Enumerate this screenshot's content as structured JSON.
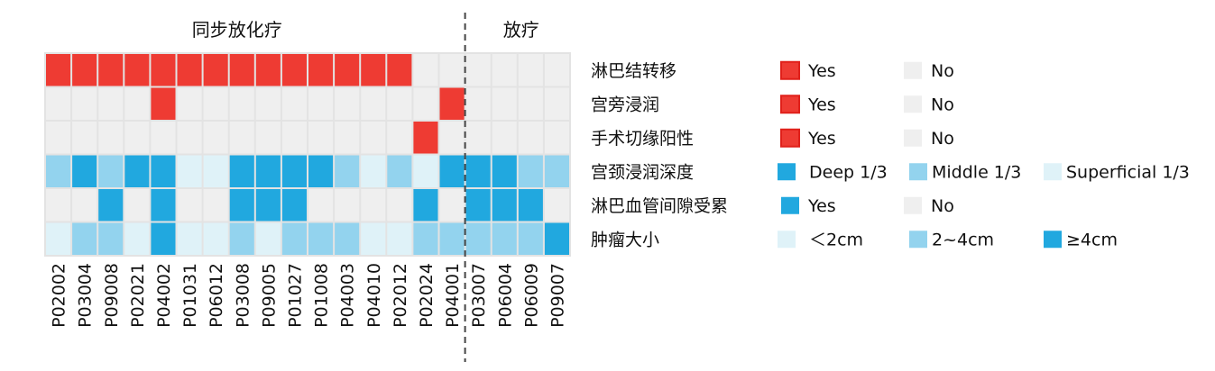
{
  "chart_data": {
    "type": "heatmap",
    "groups": [
      {
        "label": "同步放化疗",
        "columns": 16
      },
      {
        "label": "放疗",
        "columns": 4
      }
    ],
    "columns": [
      "P02002",
      "P03004",
      "P09008",
      "P02021",
      "P04002",
      "P01031",
      "P06012",
      "P03008",
      "P09005",
      "P01027",
      "P01008",
      "P04003",
      "P04010",
      "P02012",
      "P02024",
      "P04001",
      "P03007",
      "P06004",
      "P06009",
      "P09007"
    ],
    "rows": [
      {
        "label": "淋巴结转移",
        "values": [
          "Yes",
          "Yes",
          "Yes",
          "Yes",
          "Yes",
          "Yes",
          "Yes",
          "Yes",
          "Yes",
          "Yes",
          "Yes",
          "Yes",
          "Yes",
          "Yes",
          "No",
          "No",
          "No",
          "No",
          "No",
          "No"
        ],
        "legend": [
          {
            "value": "Yes",
            "label": "Yes",
            "color": "#ee3b33"
          },
          {
            "value": "No",
            "label": "No",
            "color": "#efefef"
          }
        ]
      },
      {
        "label": "宫旁浸润",
        "values": [
          "No",
          "No",
          "No",
          "No",
          "Yes",
          "No",
          "No",
          "No",
          "No",
          "No",
          "No",
          "No",
          "No",
          "No",
          "No",
          "Yes",
          "No",
          "No",
          "No",
          "No"
        ],
        "legend": [
          {
            "value": "Yes",
            "label": "Yes",
            "color": "#ee3b33"
          },
          {
            "value": "No",
            "label": "No",
            "color": "#efefef"
          }
        ]
      },
      {
        "label": "手术切缘阳性",
        "values": [
          "No",
          "No",
          "No",
          "No",
          "No",
          "No",
          "No",
          "No",
          "No",
          "No",
          "No",
          "No",
          "No",
          "No",
          "Yes",
          "No",
          "No",
          "No",
          "No",
          "No"
        ],
        "legend": [
          {
            "value": "Yes",
            "label": "Yes",
            "color": "#ee3b33"
          },
          {
            "value": "No",
            "label": "No",
            "color": "#efefef"
          }
        ]
      },
      {
        "label": "宫颈浸润深度",
        "values": [
          "M",
          "D",
          "M",
          "D",
          "D",
          "S",
          "S",
          "D",
          "D",
          "D",
          "D",
          "M",
          "S",
          "M",
          "S",
          "D",
          "D",
          "D",
          "M",
          "M"
        ],
        "legend": [
          {
            "value": "D",
            "label": "Deep 1/3",
            "color": "#21a8df"
          },
          {
            "value": "M",
            "label": "Middle 1/3",
            "color": "#93d3ee"
          },
          {
            "value": "S",
            "label": "Superficial 1/3",
            "color": "#dff2f8"
          }
        ]
      },
      {
        "label": "淋巴血管间隙受累",
        "values": [
          "No",
          "No",
          "Yes",
          "No",
          "Yes",
          "No",
          "No",
          "Yes",
          "Yes",
          "Yes",
          "No",
          "No",
          "No",
          "No",
          "Yes",
          "No",
          "Yes",
          "Yes",
          "Yes",
          "No"
        ],
        "legend": [
          {
            "value": "Yes",
            "label": "Yes",
            "color": "#21a8df"
          },
          {
            "value": "No",
            "label": "No",
            "color": "#efefef"
          }
        ]
      },
      {
        "label": "肿瘤大小",
        "values": [
          "S",
          "M",
          "M",
          "S",
          "L",
          "S",
          "S",
          "M",
          "S",
          "M",
          "M",
          "M",
          "S",
          "S",
          "M",
          "M",
          "M",
          "M",
          "M",
          "L"
        ],
        "legend": [
          {
            "value": "S",
            "label": "＜2cm",
            "color": "#dff2f8"
          },
          {
            "value": "M",
            "label": "2~4cm",
            "color": "#93d3ee"
          },
          {
            "value": "L",
            "label": "≥4cm",
            "color": "#21a8df"
          }
        ]
      }
    ]
  }
}
